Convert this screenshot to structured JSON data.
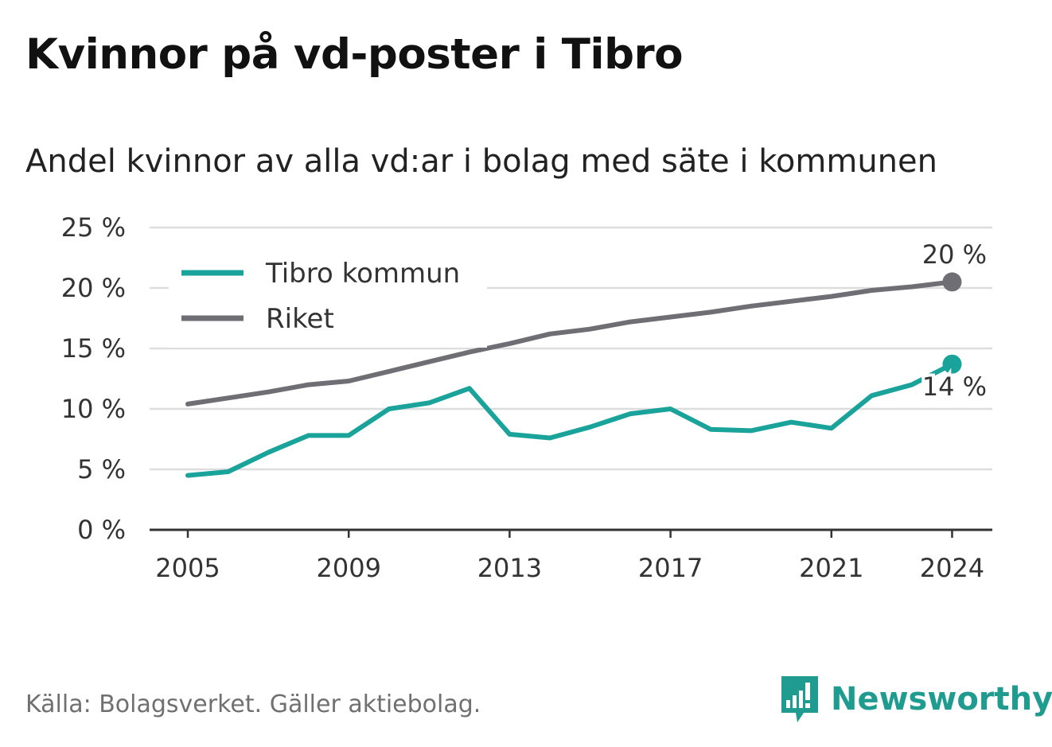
{
  "title": "Kvinnor på vd-poster i Tibro",
  "subtitle": "Andel kvinnor av alla vd:ar i bolag med säte i kommunen",
  "source": "Källa: Bolagsverket. Gäller aktiebolag.",
  "brand": {
    "name": "Newsworthy",
    "icon": "newsworthy-logo-icon",
    "color": "#1f9c8f"
  },
  "chart_data": {
    "type": "line",
    "x": [
      2005,
      2006,
      2007,
      2008,
      2009,
      2010,
      2011,
      2012,
      2013,
      2014,
      2015,
      2016,
      2017,
      2018,
      2019,
      2020,
      2021,
      2022,
      2023,
      2024
    ],
    "x_ticks": [
      "2005",
      "2009",
      "2013",
      "2017",
      "2021",
      "2024"
    ],
    "y_ticks": [
      "0 %",
      "5 %",
      "10 %",
      "15 %",
      "20 %",
      "25 %"
    ],
    "ylim": [
      0,
      25
    ],
    "grid": true,
    "legend_position": "top-left",
    "series": [
      {
        "name": "Tibro kommun",
        "color": "#1aa39a",
        "values": [
          4.5,
          4.8,
          6.4,
          7.8,
          7.8,
          10.0,
          10.5,
          11.7,
          7.9,
          7.6,
          8.5,
          9.6,
          10.0,
          8.3,
          8.2,
          8.9,
          8.4,
          11.1,
          12.0,
          13.7
        ],
        "end_label": "14 %"
      },
      {
        "name": "Riket",
        "color": "#6e6e74",
        "values": [
          10.4,
          10.9,
          11.4,
          12.0,
          12.3,
          13.1,
          13.9,
          14.7,
          15.4,
          16.2,
          16.6,
          17.2,
          17.6,
          18.0,
          18.5,
          18.9,
          19.3,
          19.8,
          20.1,
          20.5
        ],
        "end_label": "20 %"
      }
    ],
    "title": "Kvinnor på vd-poster i Tibro",
    "subtitle": "Andel kvinnor av alla vd:ar i bolag med säte i kommunen",
    "xlabel": "",
    "ylabel": ""
  }
}
